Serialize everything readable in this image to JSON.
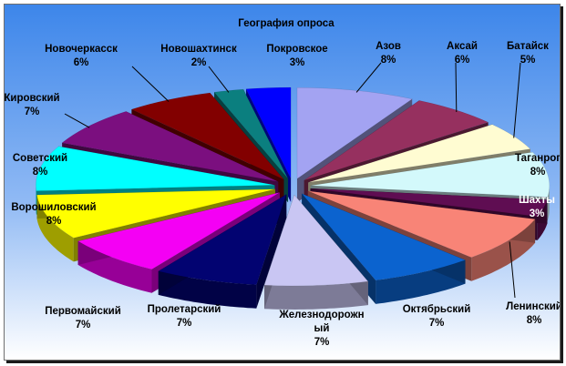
{
  "chart_data": {
    "type": "pie",
    "title": "География опроса",
    "exploded": true,
    "three_d": true,
    "unit": "%",
    "slices": [
      {
        "name": "Азов",
        "value": 8,
        "label": "8%",
        "color": "#a3a3f2"
      },
      {
        "name": "Аксай",
        "value": 6,
        "label": "6%",
        "color": "#96305f"
      },
      {
        "name": "Батайск",
        "value": 5,
        "label": "5%",
        "color": "#fffcd2"
      },
      {
        "name": "Таганрог",
        "value": 8,
        "label": "8%",
        "color": "#d3f9fb"
      },
      {
        "name": "Шахты",
        "value": 3,
        "label": "3%",
        "color": "#5f0d52"
      },
      {
        "name": "Ленинский",
        "value": 8,
        "label": "8%",
        "color": "#f88477"
      },
      {
        "name": "Октябрьский",
        "value": 7,
        "label": "7%",
        "color": "#0b63cf"
      },
      {
        "name": "Железнодорожный",
        "name_lines": [
          "Железнодорожн",
          "ый"
        ],
        "value": 7,
        "label": "7%",
        "color": "#c9c6f3"
      },
      {
        "name": "Пролетарский",
        "value": 7,
        "label": "7%",
        "color": "#020371"
      },
      {
        "name": "Первомайский",
        "value": 7,
        "label": "7%",
        "color": "#f400f4"
      },
      {
        "name": "Ворошиловский",
        "value": 8,
        "label": "8%",
        "color": "#ffff00"
      },
      {
        "name": "Советский",
        "value": 8,
        "label": "8%",
        "color": "#00ffff"
      },
      {
        "name": "Кировский",
        "value": 7,
        "label": "7%",
        "color": "#7b0f7f"
      },
      {
        "name": "Новочеркасск",
        "value": 6,
        "label": "6%",
        "color": "#820000"
      },
      {
        "name": "Новошахтинск",
        "value": 2,
        "label": "2%",
        "color": "#0b7f7f"
      },
      {
        "name": "Покровское",
        "value": 3,
        "label": "3%",
        "color": "#0000ff"
      }
    ]
  }
}
